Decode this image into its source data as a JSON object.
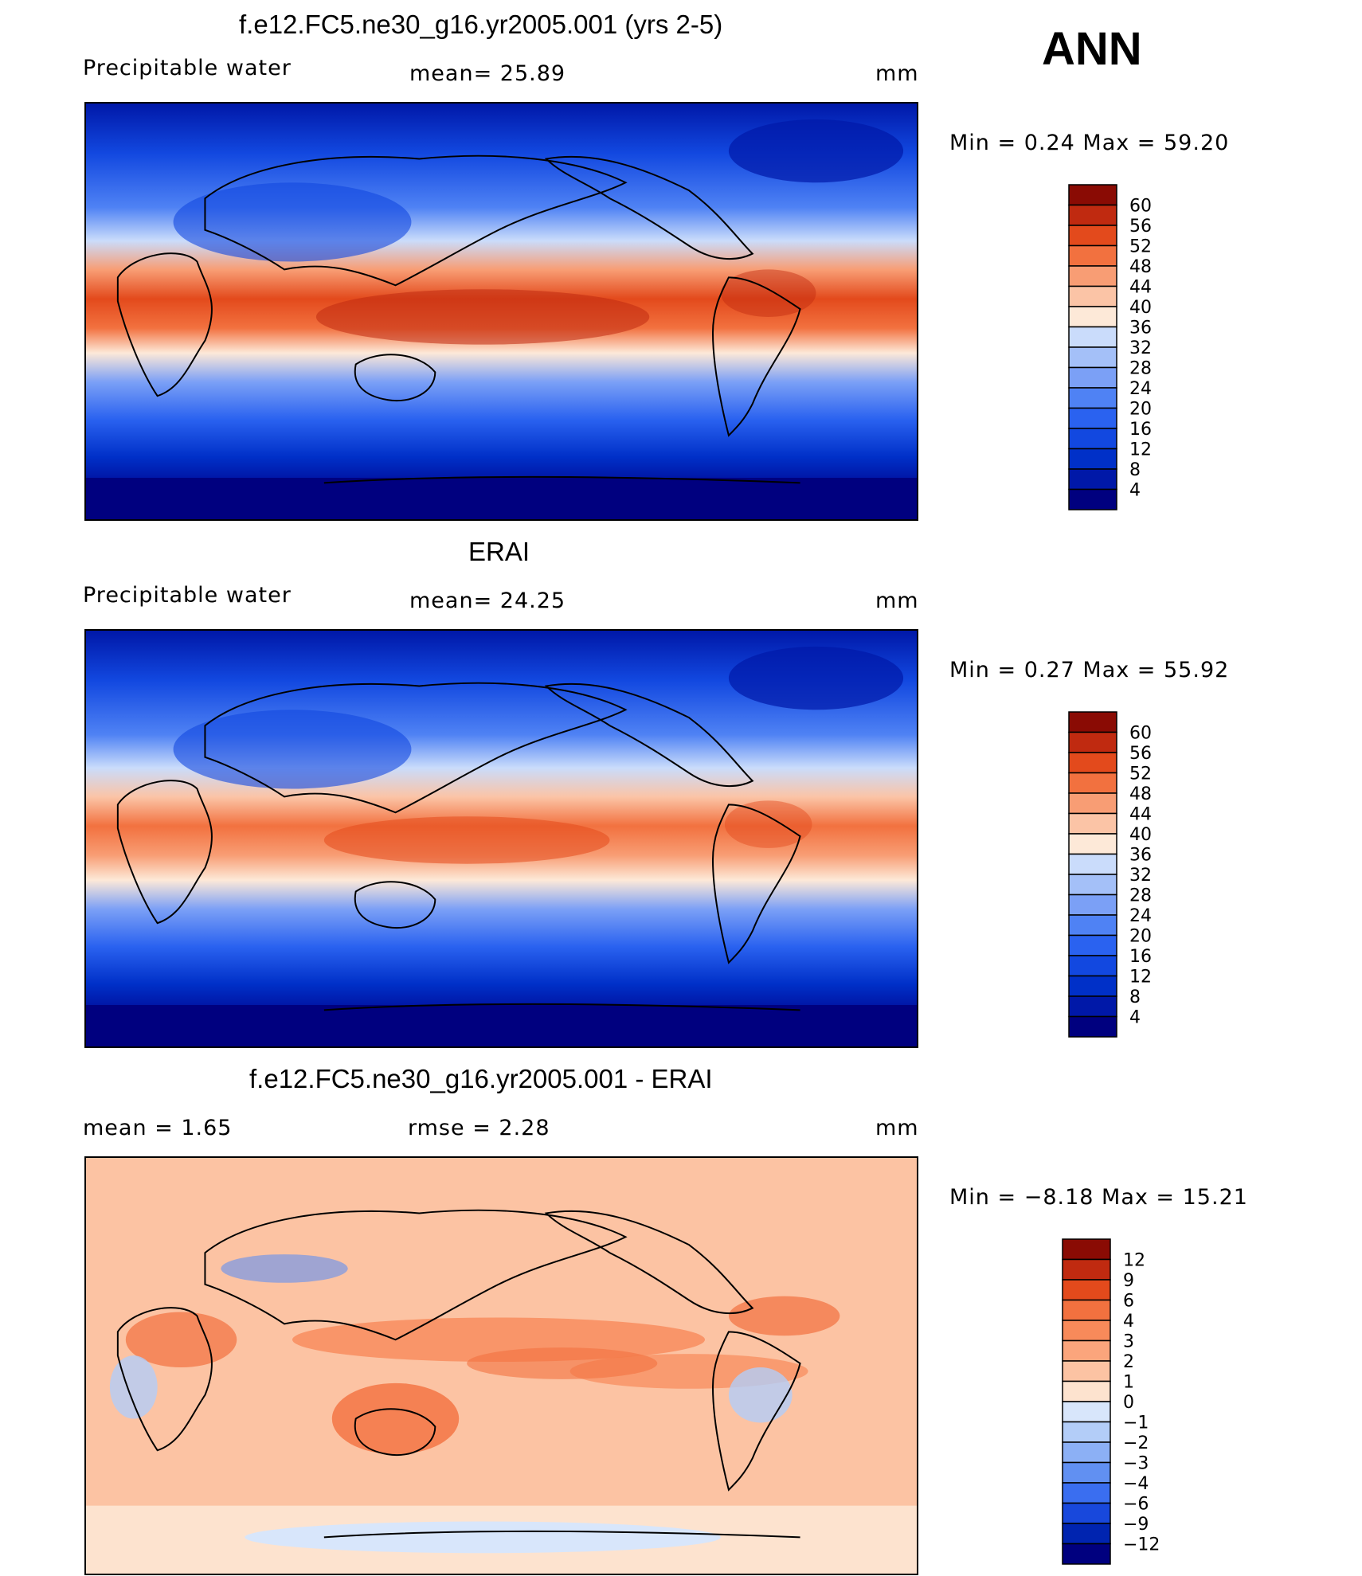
{
  "season": "ANN",
  "panels": [
    {
      "id": "model",
      "title": "f.e12.FC5.ne30_g16.yr2005.001 (yrs 2-5)",
      "left_label": "Precipitable  water",
      "mid_label": "mean=   25.89",
      "units": "mm",
      "minmax": "Min  =     0.24  Max  =     59.20"
    },
    {
      "id": "obs",
      "title": "ERAI",
      "left_label": "Precipitable  water",
      "mid_label": "mean=   24.25",
      "units": "mm",
      "minmax": "Min  =     0.27  Max  =     55.92"
    },
    {
      "id": "diff",
      "title": "f.e12.FC5.ne30_g16.yr2005.001 - ERAI",
      "left_label": "mean  =     1.65",
      "mid_label": "rmse  =     2.28",
      "units": "mm",
      "minmax": "Min  =   −8.18  Max  =    15.21"
    }
  ],
  "chart_data": [
    {
      "type": "heatmap",
      "title": "f.e12.FC5.ne30_g16.yr2005.001 (yrs 2-5)",
      "variable": "Precipitable water",
      "units": "mm",
      "mean": 25.89,
      "min": 0.24,
      "max": 59.2,
      "colorbar_levels": [
        4,
        8,
        12,
        16,
        20,
        24,
        28,
        32,
        36,
        40,
        44,
        48,
        52,
        56,
        60
      ],
      "colorbar_colors": [
        "#00007f",
        "#0018a8",
        "#0030c8",
        "#1248e0",
        "#2a62f0",
        "#4f82f4",
        "#7ba0f6",
        "#a4c0f8",
        "#cadcfb",
        "#fde9d8",
        "#fbc4a6",
        "#f89d74",
        "#f2713f",
        "#e34a1c",
        "#c02a10",
        "#8a0b04"
      ]
    },
    {
      "type": "heatmap",
      "title": "ERAI",
      "variable": "Precipitable water",
      "units": "mm",
      "mean": 24.25,
      "min": 0.27,
      "max": 55.92,
      "colorbar_levels": [
        4,
        8,
        12,
        16,
        20,
        24,
        28,
        32,
        36,
        40,
        44,
        48,
        52,
        56,
        60
      ],
      "colorbar_colors": [
        "#00007f",
        "#0018a8",
        "#0030c8",
        "#1248e0",
        "#2a62f0",
        "#4f82f4",
        "#7ba0f6",
        "#a4c0f8",
        "#cadcfb",
        "#fde9d8",
        "#fbc4a6",
        "#f89d74",
        "#f2713f",
        "#e34a1c",
        "#c02a10",
        "#8a0b04"
      ]
    },
    {
      "type": "heatmap",
      "title": "f.e12.FC5.ne30_g16.yr2005.001 - ERAI",
      "units": "mm",
      "mean": 1.65,
      "rmse": 2.28,
      "min": -8.18,
      "max": 15.21,
      "colorbar_levels": [
        "12",
        "9",
        "6",
        "4",
        "3",
        "2",
        "1",
        "0",
        "−1",
        "−2",
        "−3",
        "−4",
        "−6",
        "−9",
        "−12"
      ],
      "colorbar_colors": [
        "#8a0b04",
        "#c02a10",
        "#e34a1c",
        "#f2713f",
        "#f88a5a",
        "#fba57c",
        "#fcc3a3",
        "#fde3cf",
        "#d8e6fb",
        "#b3cdf8",
        "#8cb0f5",
        "#6190f2",
        "#3a6ef0",
        "#1848dc",
        "#0024b0",
        "#00007f"
      ]
    }
  ]
}
